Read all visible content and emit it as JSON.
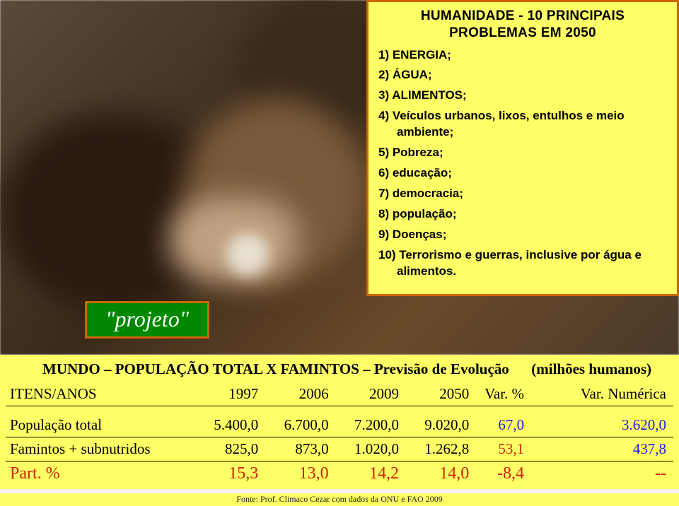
{
  "problems": {
    "title_line1": "HUMANIDADE - 10 PRINCIPAIS",
    "title_line2": "PROBLEMAS EM 2050",
    "items": [
      "1) ENERGIA;",
      "2) ÁGUA;",
      "3) ALIMENTOS;",
      "4) Veículos urbanos, lixos, entulhos e meio ambiente;",
      "5) Pobreza;",
      "6) educação;",
      "7) democracia;",
      "8) população;",
      "9) Doenças;",
      "10) Terrorismo e guerras, inclusive por água e alimentos."
    ],
    "box_border_color": "#cc6600",
    "box_bg_color": "#ffff66"
  },
  "badge": {
    "label": "\"projeto\"",
    "bg_color": "#008800",
    "border_color": "#cc6600"
  },
  "table": {
    "title_main": "MUNDO – POPULAÇÃO TOTAL X FAMINTOS – Previsão de Evolução",
    "title_right": "(milhões humanos)",
    "headers": [
      "ITENS/ANOS",
      "1997",
      "2006",
      "2009",
      "2050",
      "Var. %",
      "Var. Numérica"
    ],
    "rows": [
      {
        "name": "População total",
        "v1997": "5.400,0",
        "v2006": "6.700,0",
        "v2009": "7.200,0",
        "v2050": "9.020,0",
        "varp": "67,0",
        "varn": "3.620,0",
        "varp_color": "#1a1af0",
        "varn_color": "#1a1af0"
      },
      {
        "name": "Famintos + subnutridos",
        "v1997": "825,0",
        "v2006": "873,0",
        "v2009": "1.020,0",
        "v2050": "1.262,8",
        "varp": "53,1",
        "varn": "437,8",
        "varp_color": "#cc2200",
        "varn_color": "#1a1af0"
      }
    ],
    "part_row": {
      "name": "Part. %",
      "v1997": "15,3",
      "v2006": "13,0",
      "v2009": "14,2",
      "v2050": "14,0",
      "varp": "-8,4",
      "varn": "--"
    },
    "band_bg": "#ffff66",
    "text_red": "#cc2200",
    "text_blue": "#1a1af0"
  },
  "fonte": "Fonte: Prof. Climaco Cezar com dados da ONU e FAO 2009"
}
